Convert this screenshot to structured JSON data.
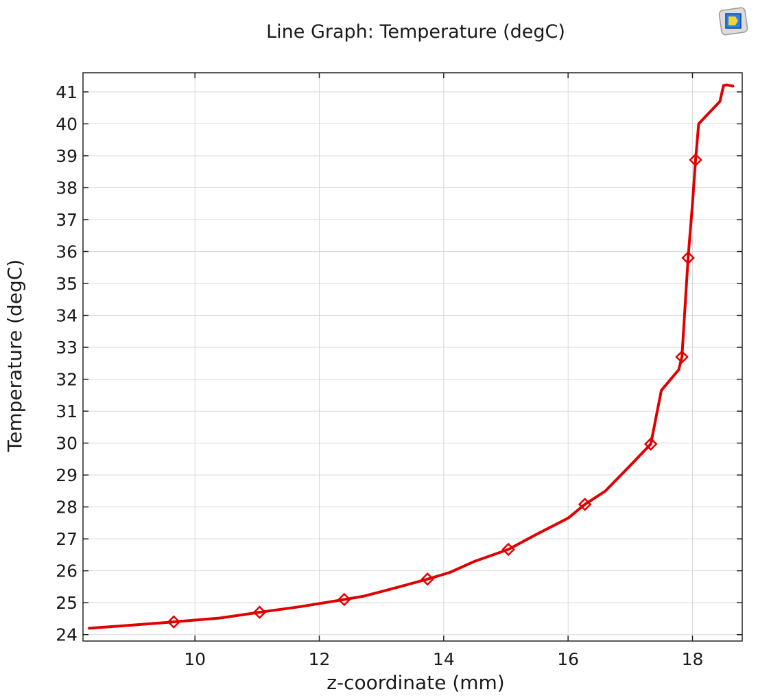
{
  "chart_data": {
    "type": "line",
    "title": "Line Graph: Temperature (degC)",
    "xlabel": "z-coordinate (mm)",
    "ylabel": "Temperature (degC)",
    "xlim": [
      8.2,
      18.8
    ],
    "ylim": [
      23.8,
      41.6
    ],
    "xticks": [
      10,
      12,
      14,
      16,
      18
    ],
    "yticks": [
      24,
      25,
      26,
      27,
      28,
      29,
      30,
      31,
      32,
      33,
      34,
      35,
      36,
      37,
      38,
      39,
      40,
      41
    ],
    "grid": true,
    "series": [
      {
        "color": "#e00000",
        "marker": "diamond",
        "x": [
          8.3,
          9.0,
          9.66,
          10.4,
          11.04,
          11.7,
          12.4,
          12.7,
          13.1,
          13.74,
          14.1,
          14.5,
          15.04,
          15.5,
          16.0,
          16.27,
          16.6,
          17.0,
          17.33,
          17.5,
          17.78,
          17.83,
          17.93,
          18.0,
          18.05,
          18.1,
          18.44,
          18.5,
          18.55,
          18.65
        ],
        "y": [
          24.2,
          24.3,
          24.4,
          24.52,
          24.7,
          24.88,
          25.1,
          25.2,
          25.4,
          25.74,
          25.95,
          26.3,
          26.67,
          27.15,
          27.65,
          28.08,
          28.5,
          29.3,
          29.97,
          31.65,
          32.3,
          32.7,
          35.8,
          37.5,
          38.87,
          40.0,
          40.7,
          41.2,
          41.22,
          41.18
        ],
        "markers": [
          {
            "x": 9.66,
            "y": 24.4
          },
          {
            "x": 11.04,
            "y": 24.7
          },
          {
            "x": 12.4,
            "y": 25.1
          },
          {
            "x": 13.74,
            "y": 25.74
          },
          {
            "x": 15.04,
            "y": 26.67
          },
          {
            "x": 16.27,
            "y": 28.08
          },
          {
            "x": 17.33,
            "y": 29.97
          },
          {
            "x": 17.83,
            "y": 32.7
          },
          {
            "x": 17.93,
            "y": 35.8
          },
          {
            "x": 18.05,
            "y": 38.87
          }
        ]
      }
    ]
  },
  "icons": {
    "corner_badge": "comsol-logo-icon"
  }
}
